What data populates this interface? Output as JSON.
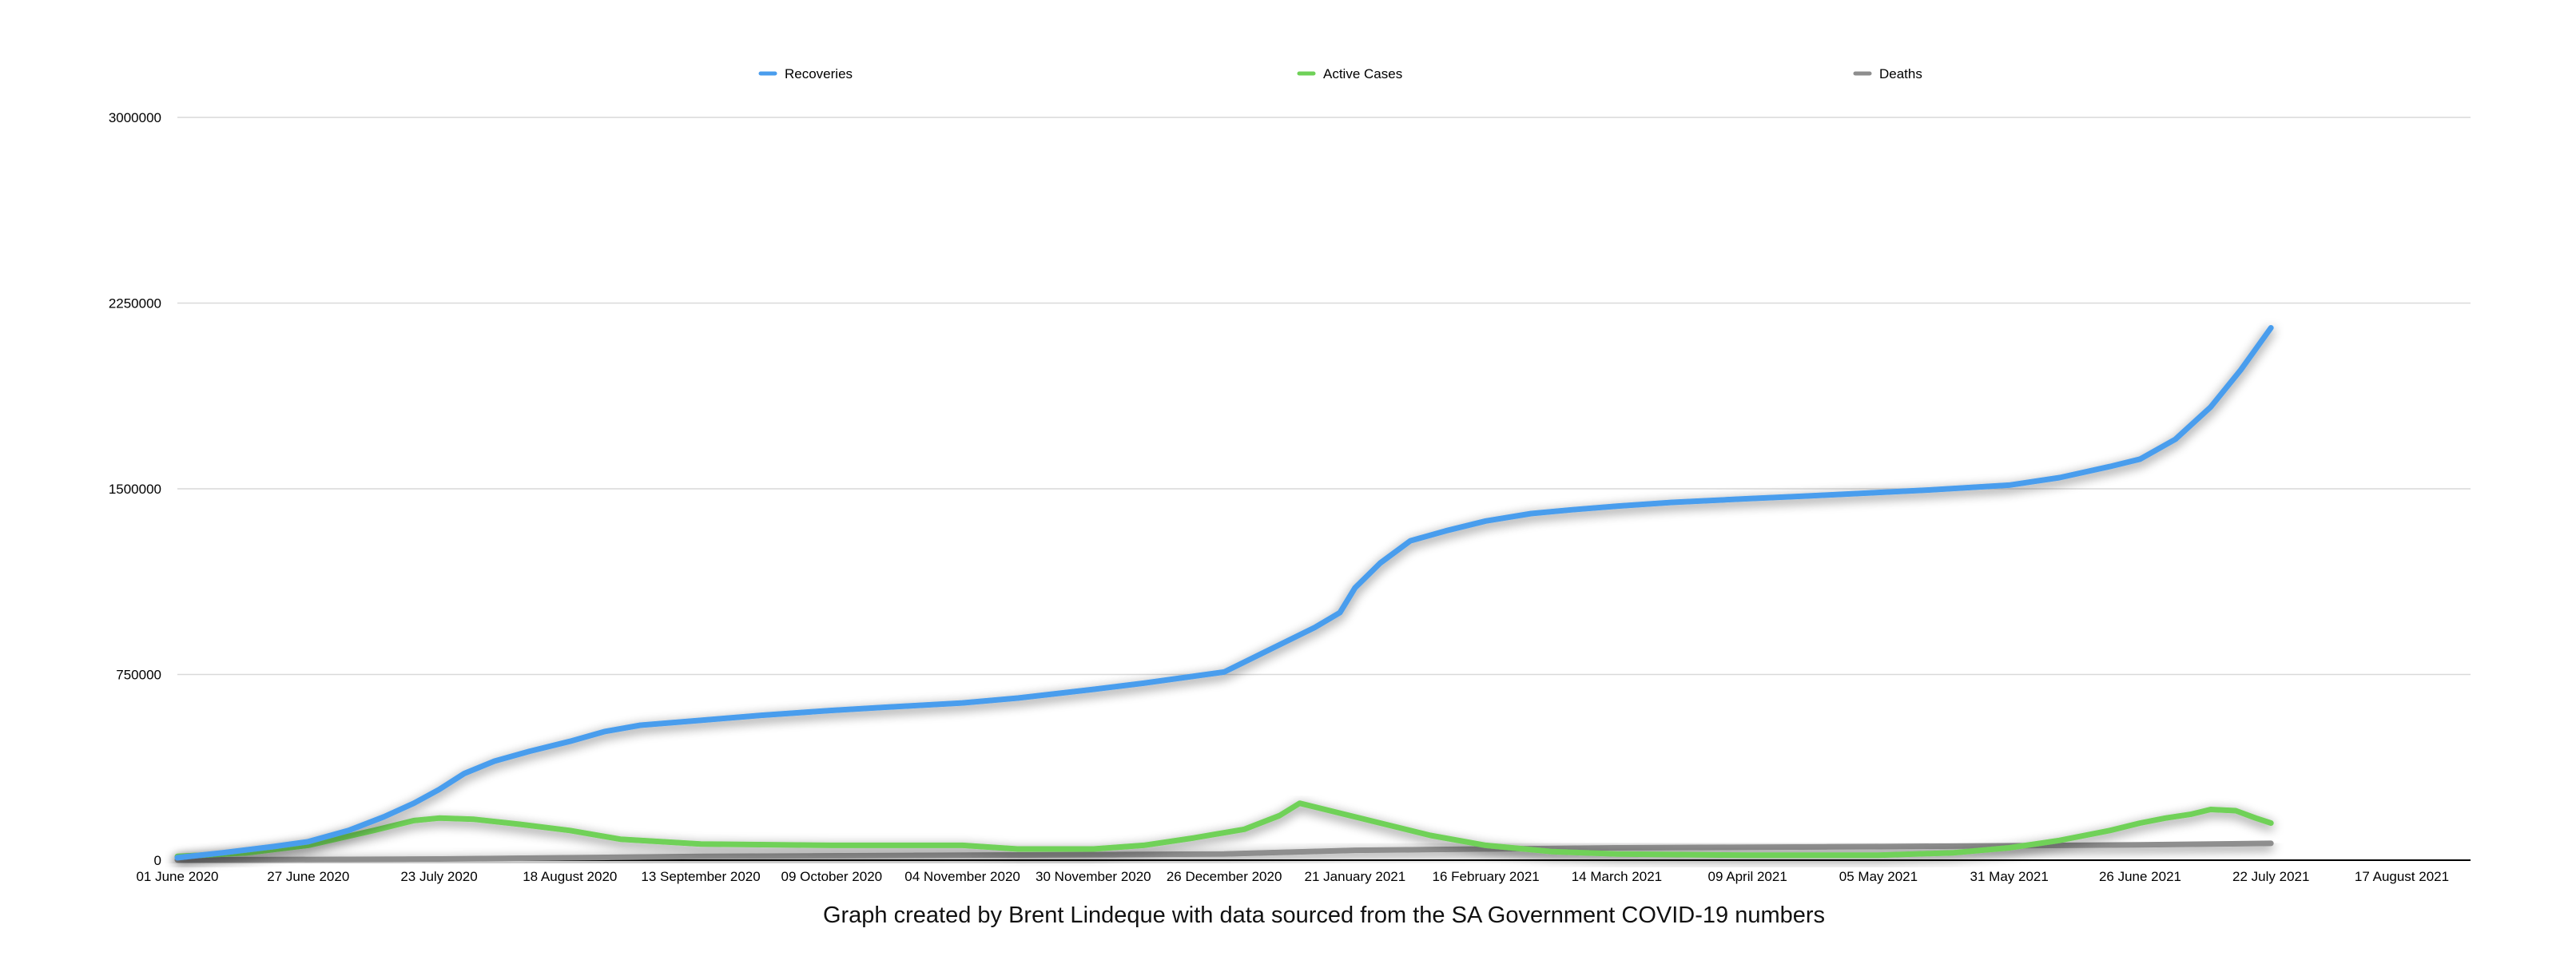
{
  "chart_data": {
    "type": "line",
    "title": "",
    "xlabel": "",
    "ylabel": "",
    "caption": "Graph created by Brent Lindeque with data sourced from the SA Government COVID-19 numbers",
    "x_range": [
      "2020-06-01",
      "2021-08-17"
    ],
    "ylim": [
      0,
      3000000
    ],
    "y_ticks": [
      0,
      750000,
      1500000,
      2250000,
      3000000
    ],
    "y_tick_labels": [
      "0",
      "750000",
      "1500000",
      "2250000",
      "3000000"
    ],
    "x_ticks": [
      "2020-06-01",
      "2020-06-27",
      "2020-07-23",
      "2020-08-18",
      "2020-09-13",
      "2020-10-09",
      "2020-11-04",
      "2020-11-30",
      "2020-12-26",
      "2021-01-21",
      "2021-02-16",
      "2021-03-14",
      "2021-04-09",
      "2021-05-05",
      "2021-05-31",
      "2021-06-26",
      "2021-07-22",
      "2021-08-17"
    ],
    "x_tick_labels": [
      "01 June 2020",
      "27 June 2020",
      "23 July 2020",
      "18 August 2020",
      "13 September 2020",
      "09 October 2020",
      "04 November 2020",
      "30 November 2020",
      "26 December 2020",
      "21 January 2021",
      "16 February 2021",
      "14 March 2021",
      "09 April 2021",
      "05 May 2021",
      "31 May 2021",
      "26 June 2021",
      "22 July 2021",
      "17 August 2021"
    ],
    "grid": true,
    "legend_position": "top",
    "colors": {
      "Recoveries": "#4a9ded",
      "Active Cases": "#6fd158",
      "Deaths": "#8e8e8e"
    },
    "series": [
      {
        "name": "Recoveries",
        "x": [
          "2020-06-01",
          "2020-06-10",
          "2020-06-20",
          "2020-06-27",
          "2020-07-05",
          "2020-07-12",
          "2020-07-18",
          "2020-07-23",
          "2020-07-28",
          "2020-08-03",
          "2020-08-10",
          "2020-08-18",
          "2020-08-25",
          "2020-09-01",
          "2020-09-13",
          "2020-09-25",
          "2020-10-09",
          "2020-10-20",
          "2020-11-04",
          "2020-11-15",
          "2020-11-30",
          "2020-12-10",
          "2020-12-26",
          "2021-01-05",
          "2021-01-13",
          "2021-01-18",
          "2021-01-21",
          "2021-01-26",
          "2021-02-01",
          "2021-02-08",
          "2021-02-16",
          "2021-02-25",
          "2021-03-05",
          "2021-03-14",
          "2021-03-25",
          "2021-04-09",
          "2021-04-20",
          "2021-05-05",
          "2021-05-15",
          "2021-05-31",
          "2021-06-10",
          "2021-06-20",
          "2021-06-26",
          "2021-07-03",
          "2021-07-10",
          "2021-07-16",
          "2021-07-22"
        ],
        "values": [
          10000,
          30000,
          55000,
          75000,
          120000,
          175000,
          230000,
          285000,
          350000,
          400000,
          440000,
          480000,
          520000,
          545000,
          565000,
          585000,
          605000,
          618000,
          635000,
          655000,
          690000,
          715000,
          760000,
          860000,
          940000,
          1000000,
          1100000,
          1200000,
          1290000,
          1330000,
          1370000,
          1400000,
          1415000,
          1430000,
          1445000,
          1460000,
          1470000,
          1485000,
          1495000,
          1515000,
          1545000,
          1590000,
          1620000,
          1700000,
          1830000,
          1980000,
          2150000
        ]
      },
      {
        "name": "Active Cases",
        "x": [
          "2020-06-01",
          "2020-06-15",
          "2020-06-27",
          "2020-07-10",
          "2020-07-18",
          "2020-07-23",
          "2020-07-30",
          "2020-08-08",
          "2020-08-18",
          "2020-08-28",
          "2020-09-13",
          "2020-10-09",
          "2020-11-04",
          "2020-11-15",
          "2020-11-30",
          "2020-12-10",
          "2020-12-20",
          "2020-12-30",
          "2021-01-06",
          "2021-01-10",
          "2021-01-16",
          "2021-01-26",
          "2021-02-05",
          "2021-02-16",
          "2021-03-01",
          "2021-03-14",
          "2021-04-09",
          "2021-05-05",
          "2021-05-20",
          "2021-05-31",
          "2021-06-10",
          "2021-06-20",
          "2021-06-26",
          "2021-07-01",
          "2021-07-06",
          "2021-07-10",
          "2021-07-15",
          "2021-07-19",
          "2021-07-22"
        ],
        "values": [
          15000,
          30000,
          60000,
          120000,
          160000,
          170000,
          165000,
          145000,
          120000,
          85000,
          65000,
          60000,
          60000,
          45000,
          45000,
          60000,
          90000,
          125000,
          180000,
          230000,
          200000,
          150000,
          100000,
          60000,
          35000,
          25000,
          20000,
          20000,
          30000,
          50000,
          80000,
          120000,
          150000,
          170000,
          185000,
          205000,
          200000,
          170000,
          150000
        ]
      },
      {
        "name": "Deaths",
        "x": [
          "2020-06-01",
          "2020-07-23",
          "2020-09-13",
          "2020-11-04",
          "2020-12-26",
          "2021-01-21",
          "2021-03-14",
          "2021-05-05",
          "2021-06-26",
          "2021-07-22"
        ],
        "values": [
          1000,
          5000,
          15000,
          20000,
          25000,
          40000,
          50000,
          55000,
          62000,
          68000
        ]
      }
    ]
  }
}
